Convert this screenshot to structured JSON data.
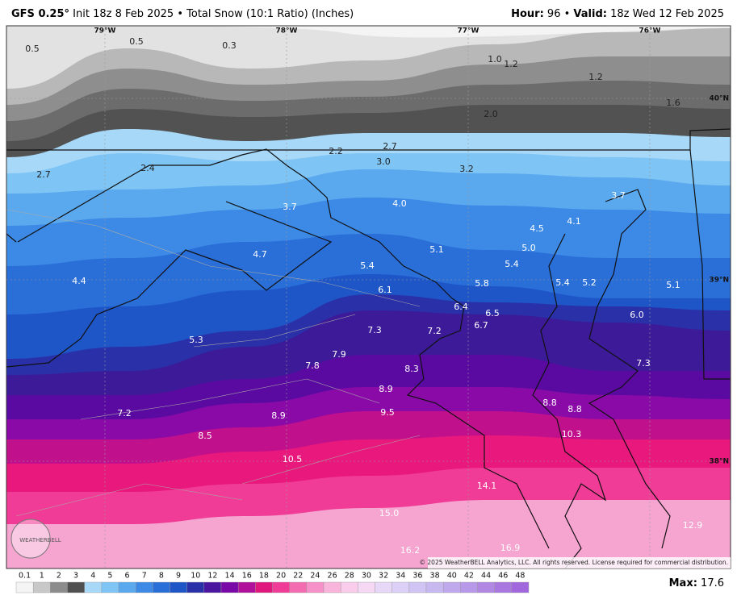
{
  "header": {
    "model": "GFS 0.25°",
    "description": "Init 18z 8 Feb 2025 • Total Snow (10:1 Ratio) (Inches)",
    "hour_label": "Hour:",
    "hour": "96",
    "separator": "•",
    "valid_label": "Valid:",
    "valid": "18z Wed 12 Feb 2025"
  },
  "axes": {
    "longitudes": [
      "79°W",
      "78°W",
      "77°W",
      "76°W"
    ],
    "latitudes": [
      "40°N",
      "39°N",
      "38°N"
    ]
  },
  "map_labels": [
    "0.5",
    "0.5",
    "0.3",
    "1.0",
    "1.2",
    "1.2",
    "1.6",
    "2.0",
    "2.2",
    "2.7",
    "2.7",
    "2.4",
    "3.0",
    "3.2",
    "3.7",
    "3.7",
    "4.0",
    "4.1",
    "4.5",
    "5.0",
    "4.7",
    "5.1",
    "5.4",
    "5.4",
    "4.4",
    "5.8",
    "5.4",
    "5.2",
    "5.1",
    "6.1",
    "6.4",
    "6.5",
    "6.0",
    "6.7",
    "5.3",
    "7.3",
    "7.2",
    "7.9",
    "7.8",
    "7.3",
    "8.3",
    "8.9",
    "8.8",
    "8.8",
    "9.5",
    "7.2",
    "8.9",
    "8.5",
    "10.3",
    "10.5",
    "14.1",
    "15.0",
    "12.9",
    "16.9",
    "16.2"
  ],
  "logo": "WEATHERBELL",
  "copyright": "© 2025 WeatherBELL Analytics, LLC. All rights reserved. License required for commercial distribution.",
  "colorbar": {
    "labels": [
      "0.1",
      "1",
      "2",
      "3",
      "4",
      "5",
      "6",
      "7",
      "8",
      "9",
      "10",
      "12",
      "14",
      "16",
      "18",
      "20",
      "22",
      "24",
      "26",
      "28",
      "30",
      "32",
      "34",
      "36",
      "38",
      "40",
      "42",
      "44",
      "46",
      "48"
    ],
    "colors": [
      "#f4f4f4",
      "#c8c8c8",
      "#8c8c8c",
      "#505050",
      "#a8d8f8",
      "#7ec4f4",
      "#5aa8ee",
      "#3c8ae6",
      "#2a6ed8",
      "#1e56c8",
      "#2a30a8",
      "#4a16a0",
      "#7a0aa8",
      "#b0109a",
      "#e0187e",
      "#f03c96",
      "#f46cb0",
      "#f690c8",
      "#f8b4da",
      "#f8ccea",
      "#f4d8f4",
      "#e8d8f8",
      "#dcd0f8",
      "#d0c4f4",
      "#c8b8f0",
      "#c0a8ec",
      "#b898e8",
      "#b088e4",
      "#a878e0",
      "#a068dc"
    ]
  },
  "max_label": "Max:",
  "max_value": "17.6"
}
